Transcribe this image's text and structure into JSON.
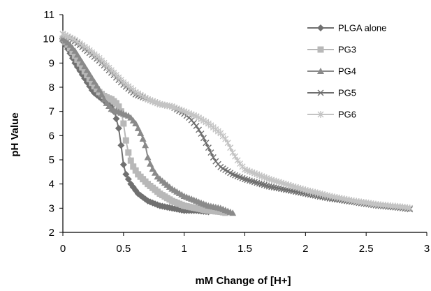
{
  "chart_data": {
    "type": "line",
    "xlabel": "mM Change of [H+]",
    "ylabel": "pH Value",
    "xlim": [
      0,
      3
    ],
    "ylim": [
      2,
      11
    ],
    "x_ticks": [
      "0",
      "0.5",
      "1",
      "1.5",
      "2",
      "2.5",
      "3"
    ],
    "y_ticks": [
      "2",
      "3",
      "4",
      "5",
      "6",
      "7",
      "8",
      "9",
      "10",
      "11"
    ],
    "grid": false,
    "legend_position": "top-right",
    "series": [
      {
        "name": "PLGA alone",
        "marker": "diamond",
        "color": "#707070",
        "points": [
          [
            0,
            9.9
          ],
          [
            0.05,
            9.5
          ],
          [
            0.1,
            9.0
          ],
          [
            0.15,
            8.6
          ],
          [
            0.2,
            8.2
          ],
          [
            0.25,
            7.8
          ],
          [
            0.3,
            7.6
          ],
          [
            0.35,
            7.4
          ],
          [
            0.4,
            7.2
          ],
          [
            0.43,
            6.9
          ],
          [
            0.46,
            6.3
          ],
          [
            0.48,
            5.6
          ],
          [
            0.5,
            4.8
          ],
          [
            0.52,
            4.4
          ],
          [
            0.56,
            4.0
          ],
          [
            0.62,
            3.6
          ],
          [
            0.7,
            3.3
          ],
          [
            0.8,
            3.1
          ],
          [
            0.9,
            3.0
          ],
          [
            1.0,
            2.9
          ],
          [
            1.1,
            2.9
          ],
          [
            1.2,
            2.85
          ]
        ]
      },
      {
        "name": "PG3",
        "marker": "square",
        "color": "#b8b8b8",
        "points": [
          [
            0,
            10.0
          ],
          [
            0.05,
            9.7
          ],
          [
            0.1,
            9.3
          ],
          [
            0.15,
            8.9
          ],
          [
            0.2,
            8.5
          ],
          [
            0.25,
            8.1
          ],
          [
            0.3,
            7.8
          ],
          [
            0.35,
            7.6
          ],
          [
            0.4,
            7.5
          ],
          [
            0.45,
            7.3
          ],
          [
            0.48,
            7.0
          ],
          [
            0.5,
            6.5
          ],
          [
            0.52,
            5.8
          ],
          [
            0.54,
            5.3
          ],
          [
            0.57,
            4.8
          ],
          [
            0.62,
            4.4
          ],
          [
            0.7,
            4.0
          ],
          [
            0.8,
            3.6
          ],
          [
            0.9,
            3.3
          ],
          [
            1.0,
            3.1
          ],
          [
            1.1,
            3.0
          ],
          [
            1.2,
            2.9
          ],
          [
            1.3,
            2.85
          ],
          [
            1.35,
            2.8
          ]
        ]
      },
      {
        "name": "PG4",
        "marker": "triangle",
        "color": "#8a8a8a",
        "points": [
          [
            0,
            10.0
          ],
          [
            0.05,
            9.8
          ],
          [
            0.1,
            9.5
          ],
          [
            0.15,
            9.1
          ],
          [
            0.2,
            8.7
          ],
          [
            0.25,
            8.3
          ],
          [
            0.3,
            7.9
          ],
          [
            0.35,
            7.4
          ],
          [
            0.4,
            7.1
          ],
          [
            0.45,
            7.0
          ],
          [
            0.5,
            6.9
          ],
          [
            0.55,
            6.8
          ],
          [
            0.6,
            6.5
          ],
          [
            0.65,
            6.0
          ],
          [
            0.68,
            5.6
          ],
          [
            0.7,
            5.1
          ],
          [
            0.73,
            4.7
          ],
          [
            0.78,
            4.3
          ],
          [
            0.85,
            4.0
          ],
          [
            0.9,
            3.8
          ],
          [
            1.0,
            3.5
          ],
          [
            1.1,
            3.3
          ],
          [
            1.2,
            3.1
          ],
          [
            1.3,
            3.0
          ],
          [
            1.4,
            2.8
          ]
        ]
      },
      {
        "name": "PG5",
        "marker": "x",
        "color": "#6e6e6e",
        "points": [
          [
            0,
            10.2
          ],
          [
            0.1,
            9.9
          ],
          [
            0.2,
            9.5
          ],
          [
            0.3,
            9.1
          ],
          [
            0.4,
            8.6
          ],
          [
            0.5,
            8.1
          ],
          [
            0.6,
            7.7
          ],
          [
            0.7,
            7.5
          ],
          [
            0.8,
            7.3
          ],
          [
            0.9,
            7.2
          ],
          [
            1.0,
            6.9
          ],
          [
            1.05,
            6.7
          ],
          [
            1.1,
            6.4
          ],
          [
            1.15,
            6.0
          ],
          [
            1.2,
            5.5
          ],
          [
            1.25,
            5.0
          ],
          [
            1.3,
            4.7
          ],
          [
            1.4,
            4.4
          ],
          [
            1.5,
            4.2
          ],
          [
            1.6,
            4.05
          ],
          [
            1.7,
            3.9
          ],
          [
            1.8,
            3.8
          ],
          [
            1.9,
            3.7
          ],
          [
            2.0,
            3.6
          ],
          [
            2.2,
            3.4
          ],
          [
            2.4,
            3.25
          ],
          [
            2.6,
            3.1
          ],
          [
            2.8,
            3.0
          ],
          [
            2.87,
            2.95
          ]
        ]
      },
      {
        "name": "PG6",
        "marker": "asterisk",
        "color": "#c4c4c4",
        "points": [
          [
            0,
            10.2
          ],
          [
            0.1,
            9.95
          ],
          [
            0.2,
            9.6
          ],
          [
            0.3,
            9.2
          ],
          [
            0.4,
            8.7
          ],
          [
            0.5,
            8.2
          ],
          [
            0.6,
            7.8
          ],
          [
            0.7,
            7.5
          ],
          [
            0.8,
            7.3
          ],
          [
            0.9,
            7.2
          ],
          [
            1.0,
            7.0
          ],
          [
            1.1,
            6.8
          ],
          [
            1.2,
            6.5
          ],
          [
            1.3,
            6.1
          ],
          [
            1.35,
            5.8
          ],
          [
            1.4,
            5.3
          ],
          [
            1.45,
            4.9
          ],
          [
            1.5,
            4.6
          ],
          [
            1.6,
            4.4
          ],
          [
            1.7,
            4.2
          ],
          [
            1.8,
            4.05
          ],
          [
            1.9,
            3.9
          ],
          [
            2.0,
            3.75
          ],
          [
            2.2,
            3.5
          ],
          [
            2.4,
            3.3
          ],
          [
            2.6,
            3.15
          ],
          [
            2.8,
            3.05
          ],
          [
            2.87,
            3.0
          ]
        ]
      }
    ]
  }
}
